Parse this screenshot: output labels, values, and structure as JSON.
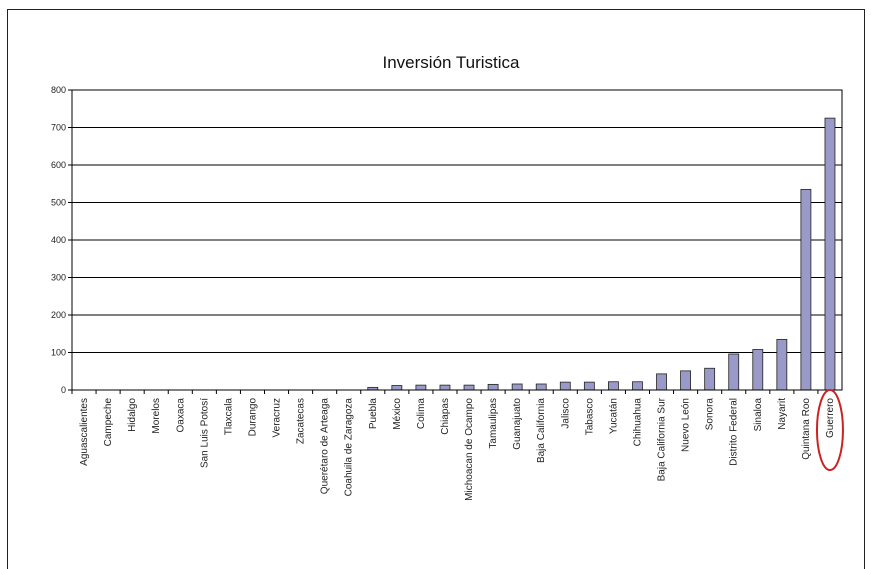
{
  "chart_data": {
    "type": "bar",
    "title": "Inversión Turistica",
    "xlabel": "",
    "ylabel": "",
    "ylim": [
      0,
      800
    ],
    "yticks": [
      "0",
      "100",
      "200",
      "300",
      "400",
      "500",
      "600",
      "700",
      "800"
    ],
    "grid": "horizontal",
    "categories": [
      "Aguascalientes",
      "Campeche",
      "Hidalgo",
      "Morelos",
      "Oaxaca",
      "San Luis Potosí",
      "Tlaxcala",
      "Durango",
      "Veracruz",
      "Zacatecas",
      "Querétaro de Arteaga",
      "Coahuila de Zaragoza",
      "Puebla",
      "México",
      "Colima",
      "Chiapas",
      "Michoacan de Ocampo",
      "Tamaulipas",
      "Guanajuato",
      "Baja California",
      "Jalisco",
      "Tabasco",
      "Yucatán",
      "Chihuahua",
      "Baja California Sur",
      "Nuevo León",
      "Sonora",
      "Distrito Federal",
      "Sinaloa",
      "Nayarit",
      "Quintana Roo",
      "Guerrero"
    ],
    "values": [
      0,
      0,
      0,
      0,
      0,
      0,
      0,
      0,
      0,
      0,
      0,
      0,
      7,
      12,
      13,
      13,
      13,
      15,
      16,
      16,
      21,
      21,
      22,
      22,
      43,
      51,
      58,
      96,
      108,
      135,
      535,
      725
    ],
    "highlight": "Guerrero",
    "bar_color": "#9a9ac9",
    "highlight_color": "#cc2222"
  }
}
